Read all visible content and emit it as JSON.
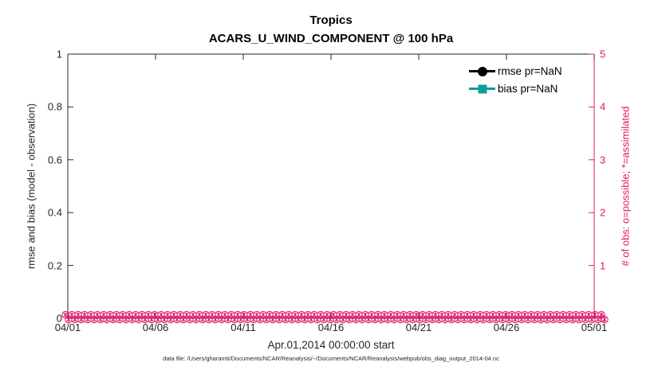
{
  "figure": {
    "footer": "data file: /Users/gharamti/Documents/NCAR/Reanalysis/~/Documents/NCAR/Reanalysis/webpub/obs_diag_output_2014-04.nc"
  },
  "chart_data": {
    "type": "line",
    "title": "Tropics",
    "subtitle": "ACARS_U_WIND_COMPONENT @ 100 hPa",
    "grid": false,
    "legend_position": "top-right inside, no box",
    "x_axis": {
      "label": "Apr.01,2014 00:00:00 start",
      "tick_labels": [
        "04/01",
        "04/06",
        "04/11",
        "04/16",
        "04/21",
        "04/26",
        "05/01"
      ]
    },
    "left_axis": {
      "label": "rmse and bias (model - observation)",
      "tick_labels": [
        "0",
        "0.2",
        "0.4",
        "0.6",
        "0.8",
        "1"
      ],
      "range": [
        0,
        1
      ],
      "color": "#262626"
    },
    "right_axis": {
      "label": "# of obs: o=possible; *=assimilated",
      "tick_labels": [
        "0",
        "1",
        "2",
        "3",
        "4",
        "5"
      ],
      "range": [
        0,
        5
      ],
      "color": "#e0186b"
    },
    "legend": [
      {
        "label": "rmse pr=NaN",
        "color": "#000000",
        "marker": "circle"
      },
      {
        "label": "bias pr=NaN",
        "color": "#0d9e96",
        "marker": "square"
      }
    ],
    "series": [
      {
        "name": "rmse",
        "axis": "left",
        "values": "NaN (no line drawn)"
      },
      {
        "name": "bias",
        "axis": "left",
        "values": "NaN (no line drawn)"
      },
      {
        "name": "obs possible (o markers)",
        "axis": "right",
        "constant_value": 0
      },
      {
        "name": "obs assimilated (* markers)",
        "axis": "right",
        "constant_value": 0
      }
    ]
  }
}
